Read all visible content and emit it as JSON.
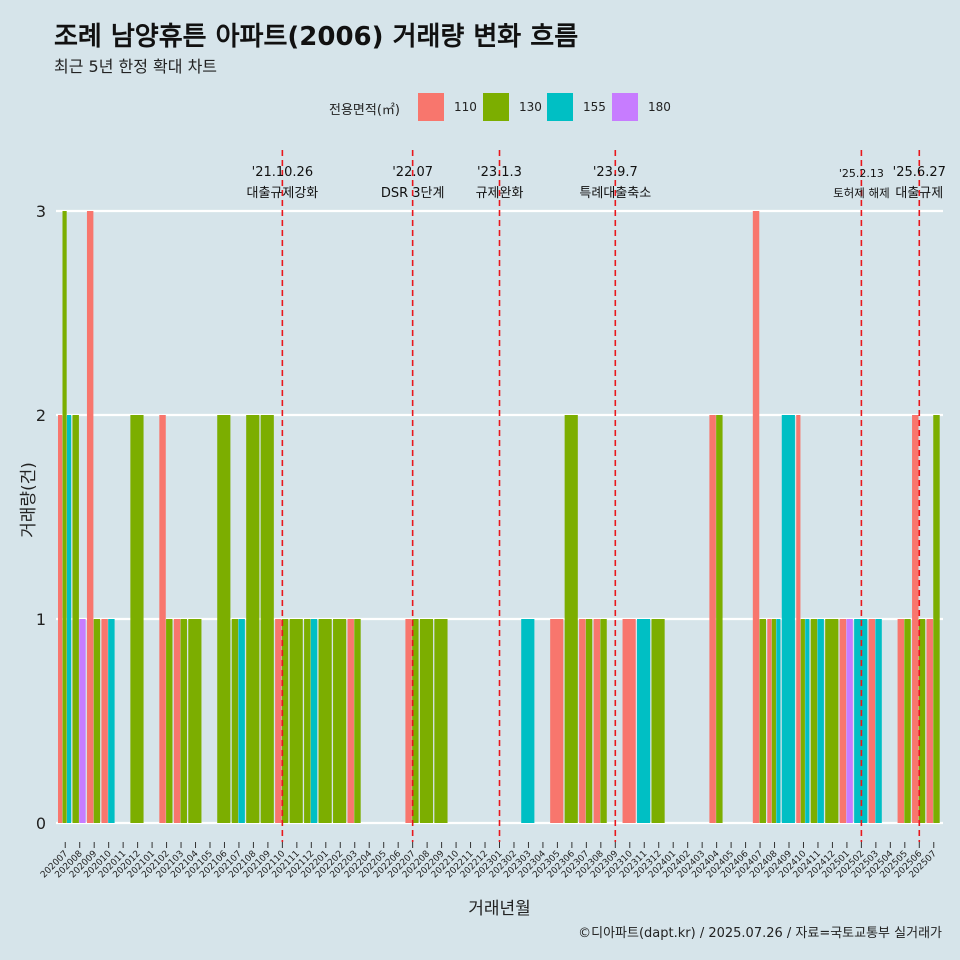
{
  "title": "조례 남양휴튼 아파트(2006) 거래량 변화 흐름",
  "subtitle": "최근 5년 한정 확대 차트",
  "legend": {
    "title": "전용면적(㎡)",
    "items": [
      {
        "label": "110",
        "color": "#f8766d"
      },
      {
        "label": "130",
        "color": "#7cae00"
      },
      {
        "label": "155",
        "color": "#00bfc4"
      },
      {
        "label": "180",
        "color": "#c77cff"
      }
    ]
  },
  "footer": "©디아파트(dapt.kr) / 2025.07.26 / 자료=국토교통부 실거래가",
  "chart_data": {
    "type": "bar",
    "xlabel": "거래년월",
    "ylabel": "거래량(건)",
    "ylim": [
      0,
      3
    ],
    "yticks": [
      0,
      1,
      2,
      3
    ],
    "grid": true,
    "legend_position": "top",
    "categories": [
      "202007",
      "202008",
      "202009",
      "202010",
      "202011",
      "202012",
      "202101",
      "202102",
      "202103",
      "202104",
      "202105",
      "202106",
      "202107",
      "202108",
      "202109",
      "202110",
      "202111",
      "202112",
      "202201",
      "202202",
      "202203",
      "202204",
      "202205",
      "202206",
      "202207",
      "202208",
      "202209",
      "202210",
      "202211",
      "202212",
      "202301",
      "202302",
      "202303",
      "202304",
      "202305",
      "202306",
      "202307",
      "202308",
      "202309",
      "202310",
      "202311",
      "202312",
      "202401",
      "202402",
      "202403",
      "202404",
      "202405",
      "202406",
      "202407",
      "202408",
      "202409",
      "202410",
      "202411",
      "202412",
      "202501",
      "202502",
      "202503",
      "202504",
      "202505",
      "202506",
      "202507"
    ],
    "series": [
      {
        "name": "110",
        "color": "#f8766d",
        "values": [
          2,
          0,
          3,
          1,
          0,
          0,
          0,
          2,
          1,
          0,
          0,
          0,
          0,
          0,
          0,
          1,
          0,
          0,
          0,
          0,
          1,
          0,
          0,
          0,
          1,
          0,
          0,
          0,
          0,
          0,
          0,
          0,
          0,
          0,
          1,
          0,
          1,
          1,
          0,
          1,
          0,
          0,
          0,
          0,
          0,
          2,
          0,
          0,
          3,
          1,
          0,
          2,
          0,
          0,
          1,
          0,
          1,
          0,
          1,
          2,
          1
        ]
      },
      {
        "name": "130",
        "color": "#7cae00",
        "values": [
          3,
          2,
          1,
          0,
          0,
          2,
          0,
          1,
          1,
          1,
          0,
          2,
          1,
          2,
          2,
          1,
          1,
          1,
          1,
          1,
          1,
          0,
          0,
          0,
          1,
          1,
          1,
          0,
          0,
          0,
          0,
          0,
          0,
          0,
          0,
          2,
          1,
          1,
          0,
          0,
          0,
          1,
          0,
          0,
          0,
          2,
          0,
          0,
          1,
          1,
          0,
          1,
          1,
          1,
          0,
          0,
          0,
          0,
          1,
          1,
          2
        ]
      },
      {
        "name": "155",
        "color": "#00bfc4",
        "values": [
          2,
          0,
          0,
          1,
          0,
          0,
          0,
          0,
          0,
          0,
          0,
          0,
          1,
          0,
          0,
          0,
          0,
          1,
          0,
          0,
          0,
          0,
          0,
          0,
          0,
          0,
          0,
          0,
          0,
          0,
          0,
          0,
          1,
          0,
          0,
          0,
          0,
          0,
          0,
          0,
          1,
          0,
          0,
          0,
          0,
          0,
          0,
          0,
          0,
          1,
          2,
          1,
          1,
          0,
          0,
          1,
          1,
          0,
          0,
          0,
          0
        ]
      },
      {
        "name": "180",
        "color": "#c77cff",
        "values": [
          0,
          1,
          0,
          0,
          0,
          0,
          0,
          0,
          0,
          0,
          0,
          0,
          0,
          0,
          0,
          0,
          0,
          0,
          0,
          0,
          0,
          0,
          0,
          0,
          0,
          0,
          0,
          0,
          0,
          0,
          0,
          0,
          0,
          0,
          0,
          0,
          0,
          0,
          0,
          0,
          0,
          0,
          0,
          0,
          0,
          0,
          0,
          0,
          0,
          0,
          0,
          0,
          0,
          0,
          1,
          0,
          0,
          0,
          0,
          0,
          0
        ]
      }
    ],
    "annotations": [
      {
        "month": "202110",
        "label1": "'21.10.26",
        "label2": "대출규제강화"
      },
      {
        "month": "202207",
        "label1": "'22.07",
        "label2": "DSR 3단계"
      },
      {
        "month": "202301",
        "label1": "'23.1.3",
        "label2": "규제완화"
      },
      {
        "month": "202309",
        "label1": "'23.9.7",
        "label2": "특례대출축소"
      },
      {
        "month": "202502",
        "label1": "'25.2.13",
        "label2": "토허제 해제"
      },
      {
        "month": "202506",
        "label1": "'25.6.27",
        "label2": "대출규제"
      }
    ]
  }
}
